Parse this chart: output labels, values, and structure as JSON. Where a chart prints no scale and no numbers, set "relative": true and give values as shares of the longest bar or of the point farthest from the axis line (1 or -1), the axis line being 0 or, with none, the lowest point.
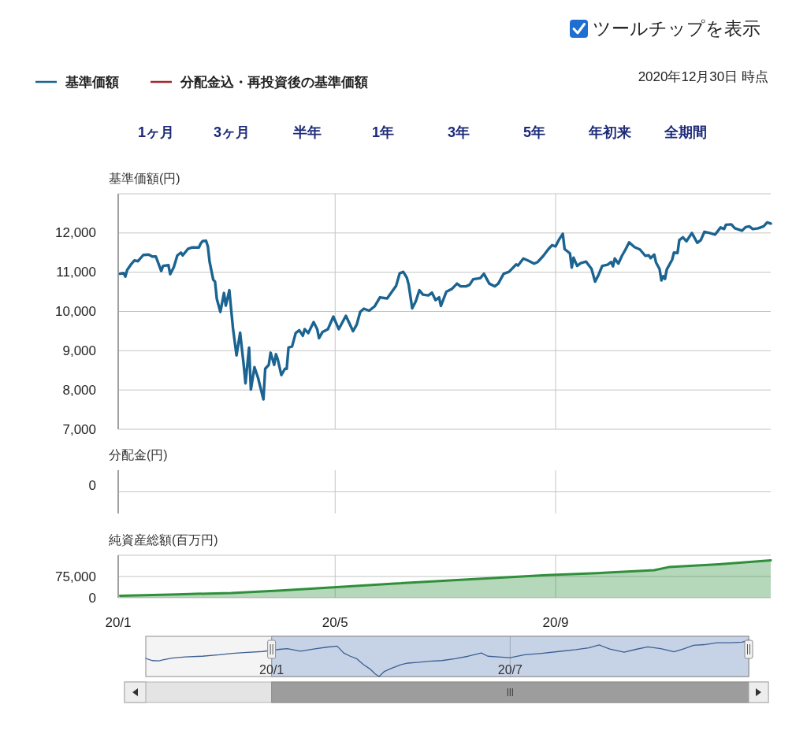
{
  "chart_data": [
    {
      "type": "line",
      "subtitle": "2020年12月30日 時点",
      "ylabel": "基準価額(円)",
      "legend": "top left",
      "annotations": [
        "ツールチップを表示",
        "1ヶ月",
        "3ヶ月",
        "半年",
        "1年",
        "3年",
        "5年",
        "年初来",
        "全期間"
      ],
      "xlim": [
        "2020-01-01",
        "2020-12-30"
      ],
      "xticks": [
        {
          "value": "2020-01-01",
          "label": null
        },
        {
          "value": "2020-05-01",
          "label": null
        },
        {
          "value": "2020-09-01",
          "label": null
        }
      ],
      "ylim": [
        7000,
        13000
      ],
      "yticks": [
        {
          "value": 7000,
          "label": "7,000"
        },
        {
          "value": 8000,
          "label": "8,000"
        },
        {
          "value": 9000,
          "label": "9,000"
        },
        {
          "value": 10000,
          "label": "10,000"
        },
        {
          "value": 11000,
          "label": "11,000"
        },
        {
          "value": 12000,
          "label": "12,000"
        },
        {
          "value": 13000,
          "label": null
        }
      ],
      "grid": true,
      "tick_labels": "y",
      "x": [
        "2020-01-02",
        "2020-01-04",
        "2020-01-05",
        "2020-01-06",
        "2020-01-08",
        "2020-01-10",
        "2020-01-12",
        "2020-01-15",
        "2020-01-18",
        "2020-01-20",
        "2020-01-22",
        "2020-01-25",
        "2020-01-26",
        "2020-01-29",
        "2020-01-30",
        "2020-02-01",
        "2020-02-03",
        "2020-02-05",
        "2020-02-06",
        "2020-02-09",
        "2020-02-11",
        "2020-02-15",
        "2020-02-16",
        "2020-02-17",
        "2020-02-19",
        "2020-02-20",
        "2020-02-21",
        "2020-02-23",
        "2020-02-24",
        "2020-02-25",
        "2020-02-27",
        "2020-02-29",
        "2020-03-01",
        "2020-03-03",
        "2020-03-04",
        "2020-03-05",
        "2020-03-07",
        "2020-03-09",
        "2020-03-11",
        "2020-03-12",
        "2020-03-14",
        "2020-03-15",
        "2020-03-17",
        "2020-03-19",
        "2020-03-22",
        "2020-03-23",
        "2020-03-25",
        "2020-03-26",
        "2020-03-28",
        "2020-03-29",
        "2020-03-30",
        "2020-04-01",
        "2020-04-03",
        "2020-04-04",
        "2020-04-05",
        "2020-04-07",
        "2020-04-09",
        "2020-04-11",
        "2020-04-13",
        "2020-04-14",
        "2020-04-16",
        "2020-04-19",
        "2020-04-21",
        "2020-04-22",
        "2020-04-24",
        "2020-04-27",
        "2020-04-30",
        "2020-05-03",
        "2020-05-05",
        "2020-05-07",
        "2020-05-11",
        "2020-05-13",
        "2020-05-15",
        "2020-05-17",
        "2020-05-20",
        "2020-05-23",
        "2020-05-26",
        "2020-05-30",
        "2020-06-04",
        "2020-06-06",
        "2020-06-08",
        "2020-06-10",
        "2020-06-11",
        "2020-06-13",
        "2020-06-15",
        "2020-06-17",
        "2020-06-19",
        "2020-06-22",
        "2020-06-24",
        "2020-06-26",
        "2020-06-28",
        "2020-06-29",
        "2020-07-02",
        "2020-07-05",
        "2020-07-08",
        "2020-07-10",
        "2020-07-13",
        "2020-07-15",
        "2020-07-17",
        "2020-07-21",
        "2020-07-23",
        "2020-07-26",
        "2020-07-29",
        "2020-07-31",
        "2020-08-03",
        "2020-08-06",
        "2020-08-10",
        "2020-08-11",
        "2020-08-14",
        "2020-08-17",
        "2020-08-20",
        "2020-08-22",
        "2020-08-25",
        "2020-08-28",
        "2020-08-30",
        "2020-09-01",
        "2020-09-03",
        "2020-09-05",
        "2020-09-06",
        "2020-09-09",
        "2020-09-10",
        "2020-09-11",
        "2020-09-13",
        "2020-09-15",
        "2020-09-18",
        "2020-09-21",
        "2020-09-23",
        "2020-09-25",
        "2020-09-27",
        "2020-09-30",
        "2020-10-02",
        "2020-10-03",
        "2020-10-04",
        "2020-10-06",
        "2020-10-08",
        "2020-10-10",
        "2020-10-12",
        "2020-10-15",
        "2020-10-18",
        "2020-10-21",
        "2020-10-23",
        "2020-10-24",
        "2020-10-26",
        "2020-10-27",
        "2020-10-29",
        "2020-10-30",
        "2020-10-31",
        "2020-11-01",
        "2020-11-02",
        "2020-11-05",
        "2020-11-06",
        "2020-11-08",
        "2020-11-09",
        "2020-11-11",
        "2020-11-13",
        "2020-11-16",
        "2020-11-19",
        "2020-11-21",
        "2020-11-23",
        "2020-11-26",
        "2020-11-29",
        "2020-12-02",
        "2020-12-04",
        "2020-12-05",
        "2020-12-08",
        "2020-12-10",
        "2020-12-14",
        "2020-12-16",
        "2020-12-18",
        "2020-12-20",
        "2020-12-23",
        "2020-12-26",
        "2020-12-28",
        "2020-12-30"
      ],
      "series": [
        {
          "name": "基準価額",
          "color": "#1b6390",
          "values": [
            10960,
            10980,
            10890,
            11060,
            11190,
            11300,
            11280,
            11440,
            11450,
            11400,
            11400,
            11030,
            11160,
            11180,
            10950,
            11130,
            11430,
            11500,
            11430,
            11600,
            11630,
            11630,
            11730,
            11790,
            11800,
            11660,
            11260,
            10810,
            10760,
            10320,
            9990,
            10470,
            10150,
            10540,
            10050,
            9580,
            8880,
            9460,
            8640,
            8170,
            9080,
            8010,
            8580,
            8310,
            7760,
            8540,
            8640,
            8950,
            8640,
            8910,
            8780,
            8380,
            8540,
            8540,
            9080,
            9110,
            9450,
            9520,
            9380,
            9550,
            9450,
            9730,
            9550,
            9320,
            9480,
            9550,
            9870,
            9550,
            9720,
            9890,
            9500,
            9660,
            9990,
            10070,
            10020,
            10130,
            10360,
            10330,
            10650,
            10970,
            11010,
            10860,
            10690,
            10080,
            10260,
            10540,
            10430,
            10410,
            10480,
            10290,
            10360,
            10140,
            10500,
            10570,
            10710,
            10640,
            10640,
            10680,
            10820,
            10850,
            10960,
            10710,
            10640,
            10710,
            10960,
            11010,
            11200,
            11170,
            11350,
            11290,
            11220,
            11260,
            11410,
            11590,
            11690,
            11660,
            11840,
            11980,
            11590,
            11480,
            11120,
            11370,
            11160,
            11230,
            11270,
            11090,
            10760,
            10940,
            11160,
            11190,
            11260,
            11150,
            11350,
            11220,
            11420,
            11580,
            11760,
            11640,
            11580,
            11420,
            11430,
            11360,
            11450,
            11250,
            11080,
            10790,
            10900,
            10830,
            11070,
            11320,
            11500,
            11490,
            11820,
            11890,
            11790,
            12000,
            11750,
            11820,
            12030,
            12000,
            11960,
            12140,
            12100,
            12210,
            12220,
            12120,
            12060,
            12150,
            12170,
            12100,
            12120,
            12170,
            12270,
            12240
          ]
        },
        {
          "name": "分配金込・再投資後の基準価額",
          "color": "#a3282b",
          "values": [
            null,
            null,
            null,
            null,
            null,
            null,
            null,
            null,
            null,
            null,
            null,
            null,
            null,
            null,
            null,
            null,
            null,
            null,
            null,
            null,
            null,
            null,
            null,
            null,
            null,
            null,
            null,
            null,
            null,
            null,
            null,
            null,
            null,
            null,
            null,
            null,
            null,
            null,
            null,
            null,
            null,
            null,
            null,
            null,
            null,
            null,
            null,
            null,
            null,
            null,
            null,
            null,
            null,
            null,
            null,
            null,
            null,
            null,
            null,
            null,
            null,
            null,
            null,
            null,
            null,
            null,
            null,
            null,
            null,
            null,
            null,
            null,
            null,
            null,
            null,
            null,
            null,
            null,
            null,
            null,
            null,
            null,
            null,
            null,
            null,
            null,
            null,
            null,
            null,
            null,
            null,
            null,
            null,
            null,
            null,
            null,
            null,
            null,
            null,
            null,
            null,
            null,
            null,
            null,
            null,
            null,
            null,
            null,
            null,
            null,
            null,
            null,
            null,
            null,
            null,
            null,
            null,
            null,
            null,
            null,
            null,
            null,
            null,
            null,
            null,
            null,
            null,
            null,
            null,
            null,
            null,
            null,
            null,
            null,
            null,
            null,
            null,
            null,
            null,
            null,
            null,
            null,
            null,
            null,
            null,
            null,
            null,
            null,
            null,
            null,
            null,
            null,
            null,
            null,
            null,
            null,
            null,
            null,
            null,
            null,
            null,
            null,
            null,
            null,
            null,
            null,
            null,
            null,
            null,
            null,
            null,
            null,
            null,
            null
          ]
        }
      ]
    },
    {
      "type": "other",
      "ylabel": "分配金(円)",
      "annotations": [
        "0"
      ]
    },
    {
      "type": "area",
      "ylabel": "純資産総額(百万円)",
      "xlim": [
        "2020-01-01",
        "2020-12-30"
      ],
      "xticks": [
        {
          "value": "2020-01-01",
          "label": "20/1"
        },
        {
          "value": "2020-05-01",
          "label": "20/5"
        },
        {
          "value": "2020-09-01",
          "label": "20/9"
        }
      ],
      "ylim": [
        0,
        150000
      ],
      "yticks": [
        0,
        {
          "value": 75000,
          "label": "75,000"
        },
        {
          "value": 150000,
          "label": null
        }
      ],
      "grid": true,
      "color": "#2f8f3a",
      "x": [
        "2020-01-02",
        "2020-02-03",
        "2020-03-04",
        "2020-04-01",
        "2020-04-30",
        "2020-06-03",
        "2020-07-12",
        "2020-08-27",
        "2020-09-28",
        "2020-10-26",
        "2020-11-03",
        "2020-12-01",
        "2020-12-30"
      ],
      "values": [
        7000,
        12000,
        17000,
        26000,
        37000,
        50000,
        64000,
        80000,
        88000,
        97000,
        108000,
        118000,
        132000
      ]
    },
    {
      "type": "line",
      "relative": true,
      "color": "#3d5f94",
      "xlim": [
        "2019-09-27",
        "2020-12-30"
      ],
      "xticks": [
        {
          "value": "2020-01-01",
          "label": "20/1"
        },
        {
          "value": "2020-07-01",
          "label": "20/7"
        }
      ],
      "grid": "x",
      "tick_labels": "x",
      "bands": [
        {
          "axis": "x",
          "from": "2020-01-01",
          "to": "2020-12-30",
          "color": "#c6d3e6"
        }
      ],
      "x": [
        "2019-09-27",
        "2019-10-02",
        "2019-10-07",
        "2019-10-10",
        "2019-10-17",
        "2019-10-27",
        "2019-11-09",
        "2019-11-22",
        "2019-12-02",
        "2019-12-11",
        "2019-12-25",
        "2020-01-07",
        "2020-01-13",
        "2020-01-23",
        "2020-02-02",
        "2020-02-12",
        "2020-02-20",
        "2020-02-25",
        "2020-03-01",
        "2020-03-06",
        "2020-03-11",
        "2020-03-16",
        "2020-03-20",
        "2020-03-23",
        "2020-03-27",
        "2020-04-01",
        "2020-04-08",
        "2020-04-14",
        "2020-04-21",
        "2020-04-30",
        "2020-05-10",
        "2020-05-20",
        "2020-05-30",
        "2020-06-09",
        "2020-06-14",
        "2020-06-22",
        "2020-07-01",
        "2020-07-12",
        "2020-07-25",
        "2020-08-07",
        "2020-08-20",
        "2020-08-30",
        "2020-09-07",
        "2020-09-15",
        "2020-09-26",
        "2020-10-05",
        "2020-10-14",
        "2020-10-24",
        "2020-11-03",
        "2020-11-10",
        "2020-11-18",
        "2020-11-26",
        "2020-12-06",
        "2020-12-16",
        "2020-12-25",
        "2020-12-30"
      ],
      "values": [
        0.5,
        0.44,
        0.43,
        0.46,
        0.51,
        0.54,
        0.56,
        0.6,
        0.64,
        0.66,
        0.69,
        0.75,
        0.77,
        0.7,
        0.76,
        0.81,
        0.84,
        0.65,
        0.56,
        0.49,
        0.33,
        0.21,
        0.07,
        0,
        0.14,
        0.22,
        0.32,
        0.37,
        0.39,
        0.42,
        0.44,
        0.49,
        0.56,
        0.65,
        0.56,
        0.54,
        0.52,
        0.6,
        0.64,
        0.69,
        0.74,
        0.79,
        0.87,
        0.76,
        0.67,
        0.75,
        0.82,
        0.77,
        0.68,
        0.76,
        0.86,
        0.88,
        0.93,
        0.93,
        0.95,
        1
      ]
    }
  ]
}
